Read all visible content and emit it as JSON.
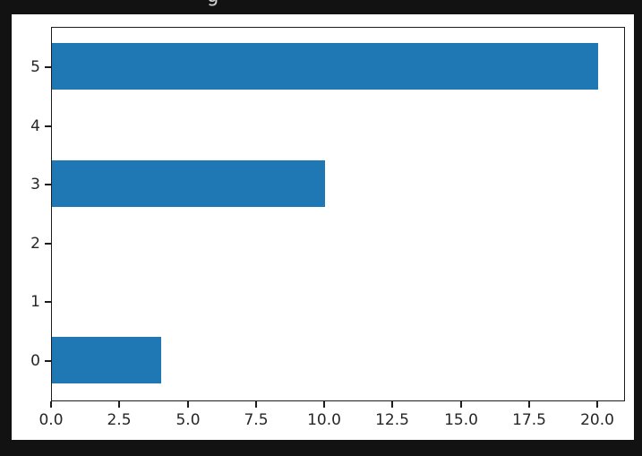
{
  "page": {
    "background_color": "#121212",
    "clipped_title_fragment": "g"
  },
  "chart_data": {
    "type": "bar",
    "orientation": "horizontal",
    "title": "",
    "categories": [
      "0",
      "1",
      "2",
      "3",
      "4",
      "5"
    ],
    "values": [
      4,
      0,
      0,
      10,
      0,
      20
    ],
    "bar_color": "#1f77b4",
    "plot_background": "#ffffff",
    "xlabel": "",
    "ylabel": "",
    "xlim": [
      0,
      21
    ],
    "x_tick_labels": [
      "0.0",
      "2.5",
      "5.0",
      "7.5",
      "10.0",
      "12.5",
      "15.0",
      "17.5",
      "20.0"
    ],
    "y_tick_labels": [
      "0",
      "1",
      "2",
      "3",
      "4",
      "5"
    ],
    "grid": false,
    "legend": false
  }
}
